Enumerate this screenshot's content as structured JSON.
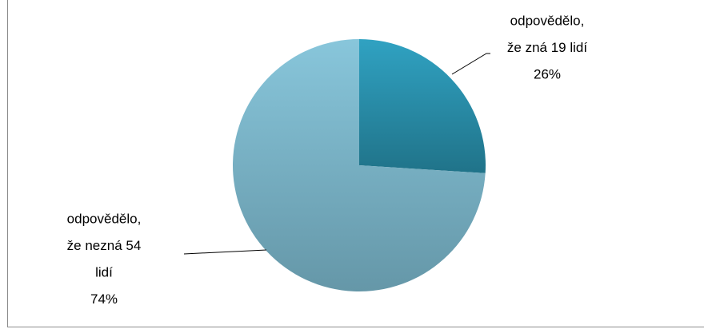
{
  "chart_data": {
    "type": "pie",
    "categories": [
      [
        "odpovědělo,",
        "že zná 19 lidí"
      ],
      [
        "odpovědělo,",
        "že nezná  54",
        "lidí"
      ]
    ],
    "values": [
      26,
      74
    ],
    "value_labels": [
      "26%",
      "74%"
    ],
    "colors": [
      "#2a8fab",
      "#7fb6c9"
    ]
  }
}
